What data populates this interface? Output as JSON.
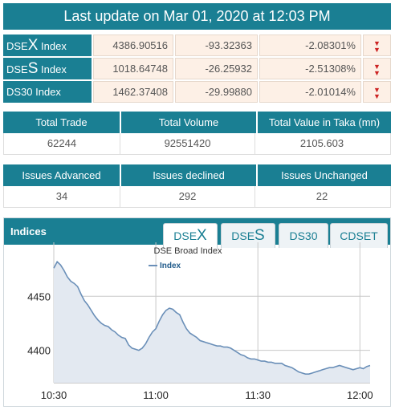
{
  "header": {
    "last_update": "Last update on Mar 01, 2020 at 12:03 PM"
  },
  "indices": [
    {
      "prefix": "DSE",
      "big": "X",
      "suffix": " Index",
      "value": "4386.90516",
      "change": "-93.32363",
      "pct": "-2.08301%",
      "trend": "down-icon"
    },
    {
      "prefix": "DSE",
      "big": "S",
      "suffix": " Index",
      "value": "1018.64748",
      "change": "-26.25932",
      "pct": "-2.51308%",
      "trend": "down-icon"
    },
    {
      "prefix": "DS30 Index",
      "big": "",
      "suffix": "",
      "value": "1462.37408",
      "change": "-29.99880",
      "pct": "-2.01014%",
      "trend": "down-icon"
    }
  ],
  "trade_summary": {
    "headers": [
      "Total Trade",
      "Total Volume",
      "Total Value in Taka (mn)"
    ],
    "values": [
      "62244",
      "92551420",
      "2105.603"
    ]
  },
  "issues_summary": {
    "headers": [
      "Issues Advanced",
      "Issues declined",
      "Issues Unchanged"
    ],
    "values": [
      "34",
      "292",
      "22"
    ]
  },
  "panel": {
    "title": "Indices",
    "tabs": [
      {
        "prefix": "DSE",
        "big": "X",
        "active": true
      },
      {
        "prefix": "DSE",
        "big": "S",
        "active": false
      },
      {
        "prefix": "DS30",
        "big": "",
        "active": false
      },
      {
        "prefix": "CDSET",
        "big": "",
        "active": false
      }
    ]
  },
  "colors": {
    "accent": "#1a7f93",
    "down": "#cc2222",
    "line": "#6a8fb8",
    "area": "#e3e9f1"
  },
  "chart_data": {
    "type": "area",
    "title": "DSE Broad Index",
    "legend": {
      "label": "Index",
      "placement": "top-left"
    },
    "xlabel": "",
    "ylabel": "",
    "x_ticks": [
      "10:30",
      "11:00",
      "11:30",
      "12:00"
    ],
    "y_ticks": [
      4400,
      4450
    ],
    "xlim_minutes": [
      0,
      93
    ],
    "ylim": [
      4370,
      4500
    ],
    "grid": true,
    "series": [
      {
        "name": "Index",
        "x": [
          0,
          1,
          2,
          3,
          4,
          5,
          6,
          7,
          8,
          9,
          10,
          11,
          12,
          13,
          14,
          15,
          16,
          17,
          18,
          19,
          20,
          21,
          22,
          23,
          24,
          25,
          26,
          27,
          28,
          29,
          30,
          31,
          32,
          33,
          34,
          35,
          36,
          37,
          38,
          39,
          40,
          41,
          42,
          43,
          44,
          45,
          46,
          47,
          48,
          49,
          50,
          51,
          52,
          53,
          54,
          55,
          56,
          57,
          58,
          59,
          60,
          61,
          62,
          63,
          64,
          65,
          66,
          67,
          68,
          69,
          70,
          71,
          72,
          73,
          74,
          75,
          76,
          77,
          78,
          79,
          80,
          81,
          82,
          83,
          84,
          85,
          86,
          87,
          88,
          89,
          90,
          91,
          92,
          93
        ],
        "values": [
          4476,
          4482,
          4479,
          4474,
          4468,
          4464,
          4462,
          4459,
          4452,
          4446,
          4442,
          4437,
          4432,
          4428,
          4425,
          4423,
          4422,
          4419,
          4417,
          4414,
          4412,
          4411,
          4405,
          4402,
          4401,
          4400,
          4402,
          4406,
          4412,
          4417,
          4420,
          4427,
          4433,
          4437,
          4439,
          4438,
          4435,
          4433,
          4426,
          4420,
          4416,
          4414,
          4412,
          4409,
          4408,
          4407,
          4406,
          4405,
          4404,
          4404,
          4403,
          4403,
          4402,
          4400,
          4398,
          4396,
          4395,
          4393,
          4392,
          4392,
          4391,
          4390,
          4390,
          4389,
          4389,
          4388,
          4388,
          4388,
          4386,
          4385,
          4384,
          4382,
          4380,
          4379,
          4378,
          4378,
          4379,
          4380,
          4381,
          4382,
          4383,
          4384,
          4384,
          4385,
          4386,
          4385,
          4384,
          4383,
          4382,
          4383,
          4384,
          4383,
          4385,
          4386
        ]
      }
    ]
  }
}
